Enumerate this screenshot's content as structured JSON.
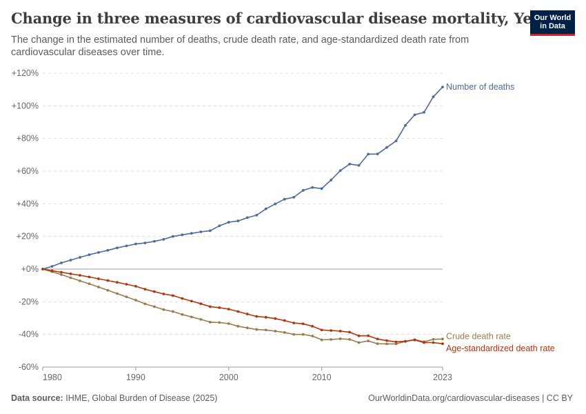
{
  "header": {
    "title": "Change in three measures of cardiovascular disease mortality, Yemen",
    "subtitle": "The change in the estimated number of deaths, crude death rate, and age-standardized death rate from cardiovascular diseases over time."
  },
  "logo": {
    "line1": "Our World",
    "line2": "in Data",
    "bg_color": "#002147",
    "accent_color": "#ce261e"
  },
  "footer": {
    "source_label": "Data source:",
    "source_text": "IHME, Global Burden of Disease (2025)",
    "url_license": "OurWorldinData.org/cardiovascular-diseases | CC BY"
  },
  "chart_data": {
    "type": "line",
    "title": "Change in three measures of cardiovascular disease mortality, Yemen",
    "xlabel": "",
    "ylabel": "",
    "xlim": [
      1980,
      2023
    ],
    "ylim": [
      -60,
      120
    ],
    "x_ticks": [
      "1980",
      "1990",
      "2000",
      "2010",
      "2023"
    ],
    "x_tick_values": [
      1980,
      1990,
      2000,
      2010,
      2023
    ],
    "y_ticks": [
      "+120%",
      "+100%",
      "+80%",
      "+60%",
      "+40%",
      "+20%",
      "+0%",
      "-20%",
      "-40%",
      "-60%"
    ],
    "y_tick_values": [
      120,
      100,
      80,
      60,
      40,
      20,
      0,
      -20,
      -40,
      -60
    ],
    "grid": "horizontal dashed",
    "x": [
      1980,
      1981,
      1982,
      1983,
      1984,
      1985,
      1986,
      1987,
      1988,
      1989,
      1990,
      1991,
      1992,
      1993,
      1994,
      1995,
      1996,
      1997,
      1998,
      1999,
      2000,
      2001,
      2002,
      2003,
      2004,
      2005,
      2006,
      2007,
      2008,
      2009,
      2010,
      2011,
      2012,
      2013,
      2014,
      2015,
      2016,
      2017,
      2018,
      2019,
      2020,
      2021,
      2022,
      2023
    ],
    "series": [
      {
        "name": "Number of deaths",
        "color": "#4c6a9c",
        "values": [
          0,
          1.7,
          3.8,
          5.5,
          7.2,
          8.8,
          10.2,
          11.5,
          13.0,
          14.2,
          15.4,
          16.0,
          17.0,
          18.2,
          20.0,
          21.0,
          21.9,
          22.8,
          23.5,
          26.5,
          28.7,
          29.5,
          31.5,
          33.0,
          36.9,
          39.9,
          42.8,
          44.0,
          48.2,
          50.0,
          49.3,
          54.5,
          60.3,
          64.3,
          63.5,
          70.4,
          70.5,
          74.5,
          78.5,
          88.0,
          94.5,
          96.0,
          105.5,
          111.5
        ]
      },
      {
        "name": "Crude death rate",
        "color": "#9a7b4f",
        "values": [
          0,
          -1.6,
          -3.4,
          -5.3,
          -7.2,
          -9.0,
          -11.0,
          -13.0,
          -15.0,
          -17.0,
          -19.0,
          -21.3,
          -23.0,
          -24.8,
          -26.0,
          -27.8,
          -29.3,
          -30.8,
          -32.5,
          -32.7,
          -33.4,
          -35.0,
          -36.0,
          -37.0,
          -37.3,
          -38.0,
          -38.8,
          -40.0,
          -40.0,
          -41.0,
          -43.3,
          -43.1,
          -42.7,
          -43.0,
          -45.0,
          -44.0,
          -45.7,
          -45.8,
          -45.8,
          -44.3,
          -43.2,
          -44.5,
          -43.0,
          -42.8
        ]
      },
      {
        "name": "Age-standardized death rate",
        "color": "#b13507",
        "values": [
          0,
          -1.0,
          -1.9,
          -2.9,
          -3.8,
          -4.8,
          -5.9,
          -7.0,
          -8.1,
          -9.3,
          -10.5,
          -12.3,
          -13.8,
          -15.2,
          -16.2,
          -18.0,
          -19.6,
          -21.2,
          -23.0,
          -23.6,
          -24.5,
          -26.0,
          -27.5,
          -29.0,
          -29.5,
          -30.3,
          -31.5,
          -33.0,
          -33.5,
          -35.0,
          -37.3,
          -37.6,
          -38.0,
          -38.6,
          -40.9,
          -40.8,
          -42.8,
          -43.8,
          -44.6,
          -44.2,
          -43.4,
          -45.0,
          -45.0,
          -45.7
        ]
      }
    ]
  }
}
